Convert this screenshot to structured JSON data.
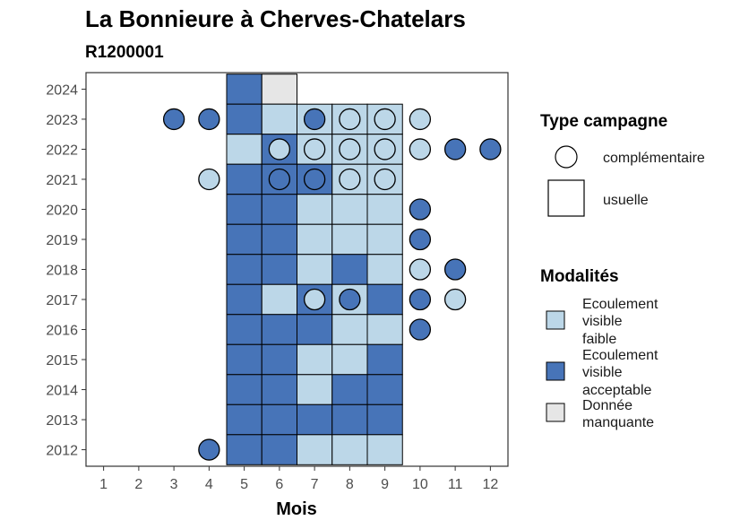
{
  "chart_data": {
    "type": "heatmap",
    "title": "La Bonnieure à Cherves-Chatelars",
    "subtitle": "R1200001",
    "xlabel": "Mois",
    "ylabel": "",
    "x_ticks": [
      "1",
      "2",
      "3",
      "4",
      "5",
      "6",
      "7",
      "8",
      "9",
      "10",
      "11",
      "12"
    ],
    "y_ticks": [
      "2012",
      "2013",
      "2014",
      "2015",
      "2016",
      "2017",
      "2018",
      "2019",
      "2020",
      "2021",
      "2022",
      "2023",
      "2024"
    ],
    "xlim": [
      0.5,
      12.5
    ],
    "ylim": [
      2011.45,
      2024.55
    ],
    "grid": false,
    "colors": {
      "faible": "#bcd7e8",
      "acceptable": "#4774b8",
      "manquante": "#e6e6e6"
    },
    "legend_type": {
      "title": "Type campagne",
      "entries": [
        {
          "key": "complementaire",
          "label": "complémentaire"
        },
        {
          "key": "usuelle",
          "label": "usuelle"
        }
      ]
    },
    "legend_modalites": {
      "title": "Modalités",
      "entries": [
        {
          "key": "faible",
          "lines": [
            "Ecoulement",
            "visible",
            "faible"
          ]
        },
        {
          "key": "acceptable",
          "lines": [
            "Ecoulement",
            "visible",
            "acceptable"
          ]
        },
        {
          "key": "manquante",
          "lines": [
            "Donnée",
            "manquante"
          ]
        }
      ]
    },
    "tiles": [
      {
        "year": 2024,
        "months": [
          5,
          6
        ],
        "values": [
          "acceptable",
          "manquante"
        ]
      },
      {
        "year": 2023,
        "months": [
          5,
          6,
          7,
          8,
          9
        ],
        "values": [
          "acceptable",
          "faible",
          "faible",
          "faible",
          "faible"
        ]
      },
      {
        "year": 2022,
        "months": [
          5,
          6,
          7,
          8,
          9
        ],
        "values": [
          "faible",
          "acceptable",
          "faible",
          "faible",
          "faible"
        ]
      },
      {
        "year": 2021,
        "months": [
          5,
          6,
          7,
          8,
          9
        ],
        "values": [
          "acceptable",
          "acceptable",
          "acceptable",
          "faible",
          "faible"
        ]
      },
      {
        "year": 2020,
        "months": [
          5,
          6,
          7,
          8,
          9
        ],
        "values": [
          "acceptable",
          "acceptable",
          "faible",
          "faible",
          "faible"
        ]
      },
      {
        "year": 2019,
        "months": [
          5,
          6,
          7,
          8,
          9
        ],
        "values": [
          "acceptable",
          "acceptable",
          "faible",
          "faible",
          "faible"
        ]
      },
      {
        "year": 2018,
        "months": [
          5,
          6,
          7,
          8,
          9
        ],
        "values": [
          "acceptable",
          "acceptable",
          "faible",
          "acceptable",
          "faible"
        ]
      },
      {
        "year": 2017,
        "months": [
          5,
          6,
          7,
          8,
          9
        ],
        "values": [
          "acceptable",
          "faible",
          "acceptable",
          "faible",
          "acceptable"
        ]
      },
      {
        "year": 2016,
        "months": [
          5,
          6,
          7,
          8,
          9
        ],
        "values": [
          "acceptable",
          "acceptable",
          "acceptable",
          "faible",
          "faible"
        ]
      },
      {
        "year": 2015,
        "months": [
          5,
          6,
          7,
          8,
          9
        ],
        "values": [
          "acceptable",
          "acceptable",
          "faible",
          "faible",
          "acceptable"
        ]
      },
      {
        "year": 2014,
        "months": [
          5,
          6,
          7,
          8,
          9
        ],
        "values": [
          "acceptable",
          "acceptable",
          "faible",
          "acceptable",
          "acceptable"
        ]
      },
      {
        "year": 2013,
        "months": [
          5,
          6,
          7,
          8,
          9
        ],
        "values": [
          "acceptable",
          "acceptable",
          "acceptable",
          "acceptable",
          "acceptable"
        ]
      },
      {
        "year": 2012,
        "months": [
          5,
          6,
          7,
          8,
          9
        ],
        "values": [
          "acceptable",
          "acceptable",
          "faible",
          "faible",
          "faible"
        ]
      }
    ],
    "points": [
      {
        "year": 2023,
        "month": 3,
        "value": "acceptable"
      },
      {
        "year": 2023,
        "month": 4,
        "value": "acceptable"
      },
      {
        "year": 2023,
        "month": 7,
        "value": "acceptable"
      },
      {
        "year": 2023,
        "month": 8,
        "value": "faible"
      },
      {
        "year": 2023,
        "month": 9,
        "value": "faible"
      },
      {
        "year": 2023,
        "month": 10,
        "value": "faible"
      },
      {
        "year": 2022,
        "month": 6,
        "value": "faible"
      },
      {
        "year": 2022,
        "month": 7,
        "value": "faible"
      },
      {
        "year": 2022,
        "month": 8,
        "value": "faible"
      },
      {
        "year": 2022,
        "month": 9,
        "value": "faible"
      },
      {
        "year": 2022,
        "month": 10,
        "value": "faible"
      },
      {
        "year": 2022,
        "month": 11,
        "value": "acceptable"
      },
      {
        "year": 2022,
        "month": 12,
        "value": "acceptable"
      },
      {
        "year": 2021,
        "month": 4,
        "value": "faible"
      },
      {
        "year": 2021,
        "month": 6,
        "value": "acceptable"
      },
      {
        "year": 2021,
        "month": 7,
        "value": "acceptable"
      },
      {
        "year": 2021,
        "month": 8,
        "value": "faible"
      },
      {
        "year": 2021,
        "month": 9,
        "value": "faible"
      },
      {
        "year": 2020,
        "month": 10,
        "value": "acceptable"
      },
      {
        "year": 2019,
        "month": 10,
        "value": "acceptable"
      },
      {
        "year": 2018,
        "month": 10,
        "value": "faible"
      },
      {
        "year": 2018,
        "month": 11,
        "value": "acceptable"
      },
      {
        "year": 2017,
        "month": 7,
        "value": "faible"
      },
      {
        "year": 2017,
        "month": 8,
        "value": "acceptable"
      },
      {
        "year": 2017,
        "month": 10,
        "value": "acceptable"
      },
      {
        "year": 2017,
        "month": 11,
        "value": "faible"
      },
      {
        "year": 2016,
        "month": 10,
        "value": "acceptable"
      },
      {
        "year": 2012,
        "month": 4,
        "value": "acceptable"
      }
    ]
  }
}
